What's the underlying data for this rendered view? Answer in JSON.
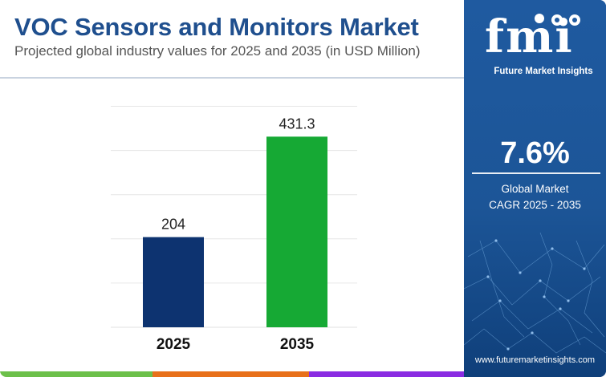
{
  "header": {
    "title": "VOC Sensors and Monitors Market",
    "subtitle": "Projected global industry values for 2025 and 2035 (in USD Million)"
  },
  "colors": {
    "title": "#1f4f8e",
    "bar_2025": "#0d3370",
    "bar_2035": "#16a934",
    "panel": "#1f5aa0",
    "strip": [
      "#6cc04a",
      "#e8701a",
      "#8a2be2"
    ]
  },
  "chart_data": {
    "type": "bar",
    "categories": [
      "2025",
      "2035"
    ],
    "values": [
      204,
      431.3
    ],
    "data_labels": [
      "204",
      "431.3"
    ],
    "title": "VOC Sensors and Monitors Market",
    "subtitle": "Projected global industry values for 2025 and 2035 (in USD Million)",
    "xlabel": "",
    "ylabel": "",
    "ylim": [
      0,
      500
    ],
    "grid": true,
    "legend": "none"
  },
  "panel": {
    "logo_text": "fmi",
    "logo_tagline": "Future Market Insights",
    "cagr_value": "7.6%",
    "cagr_label_line1": "Global Market",
    "cagr_label_line2": "CAGR 2025 - 2035",
    "website": "www.futuremarketinsights.com"
  }
}
